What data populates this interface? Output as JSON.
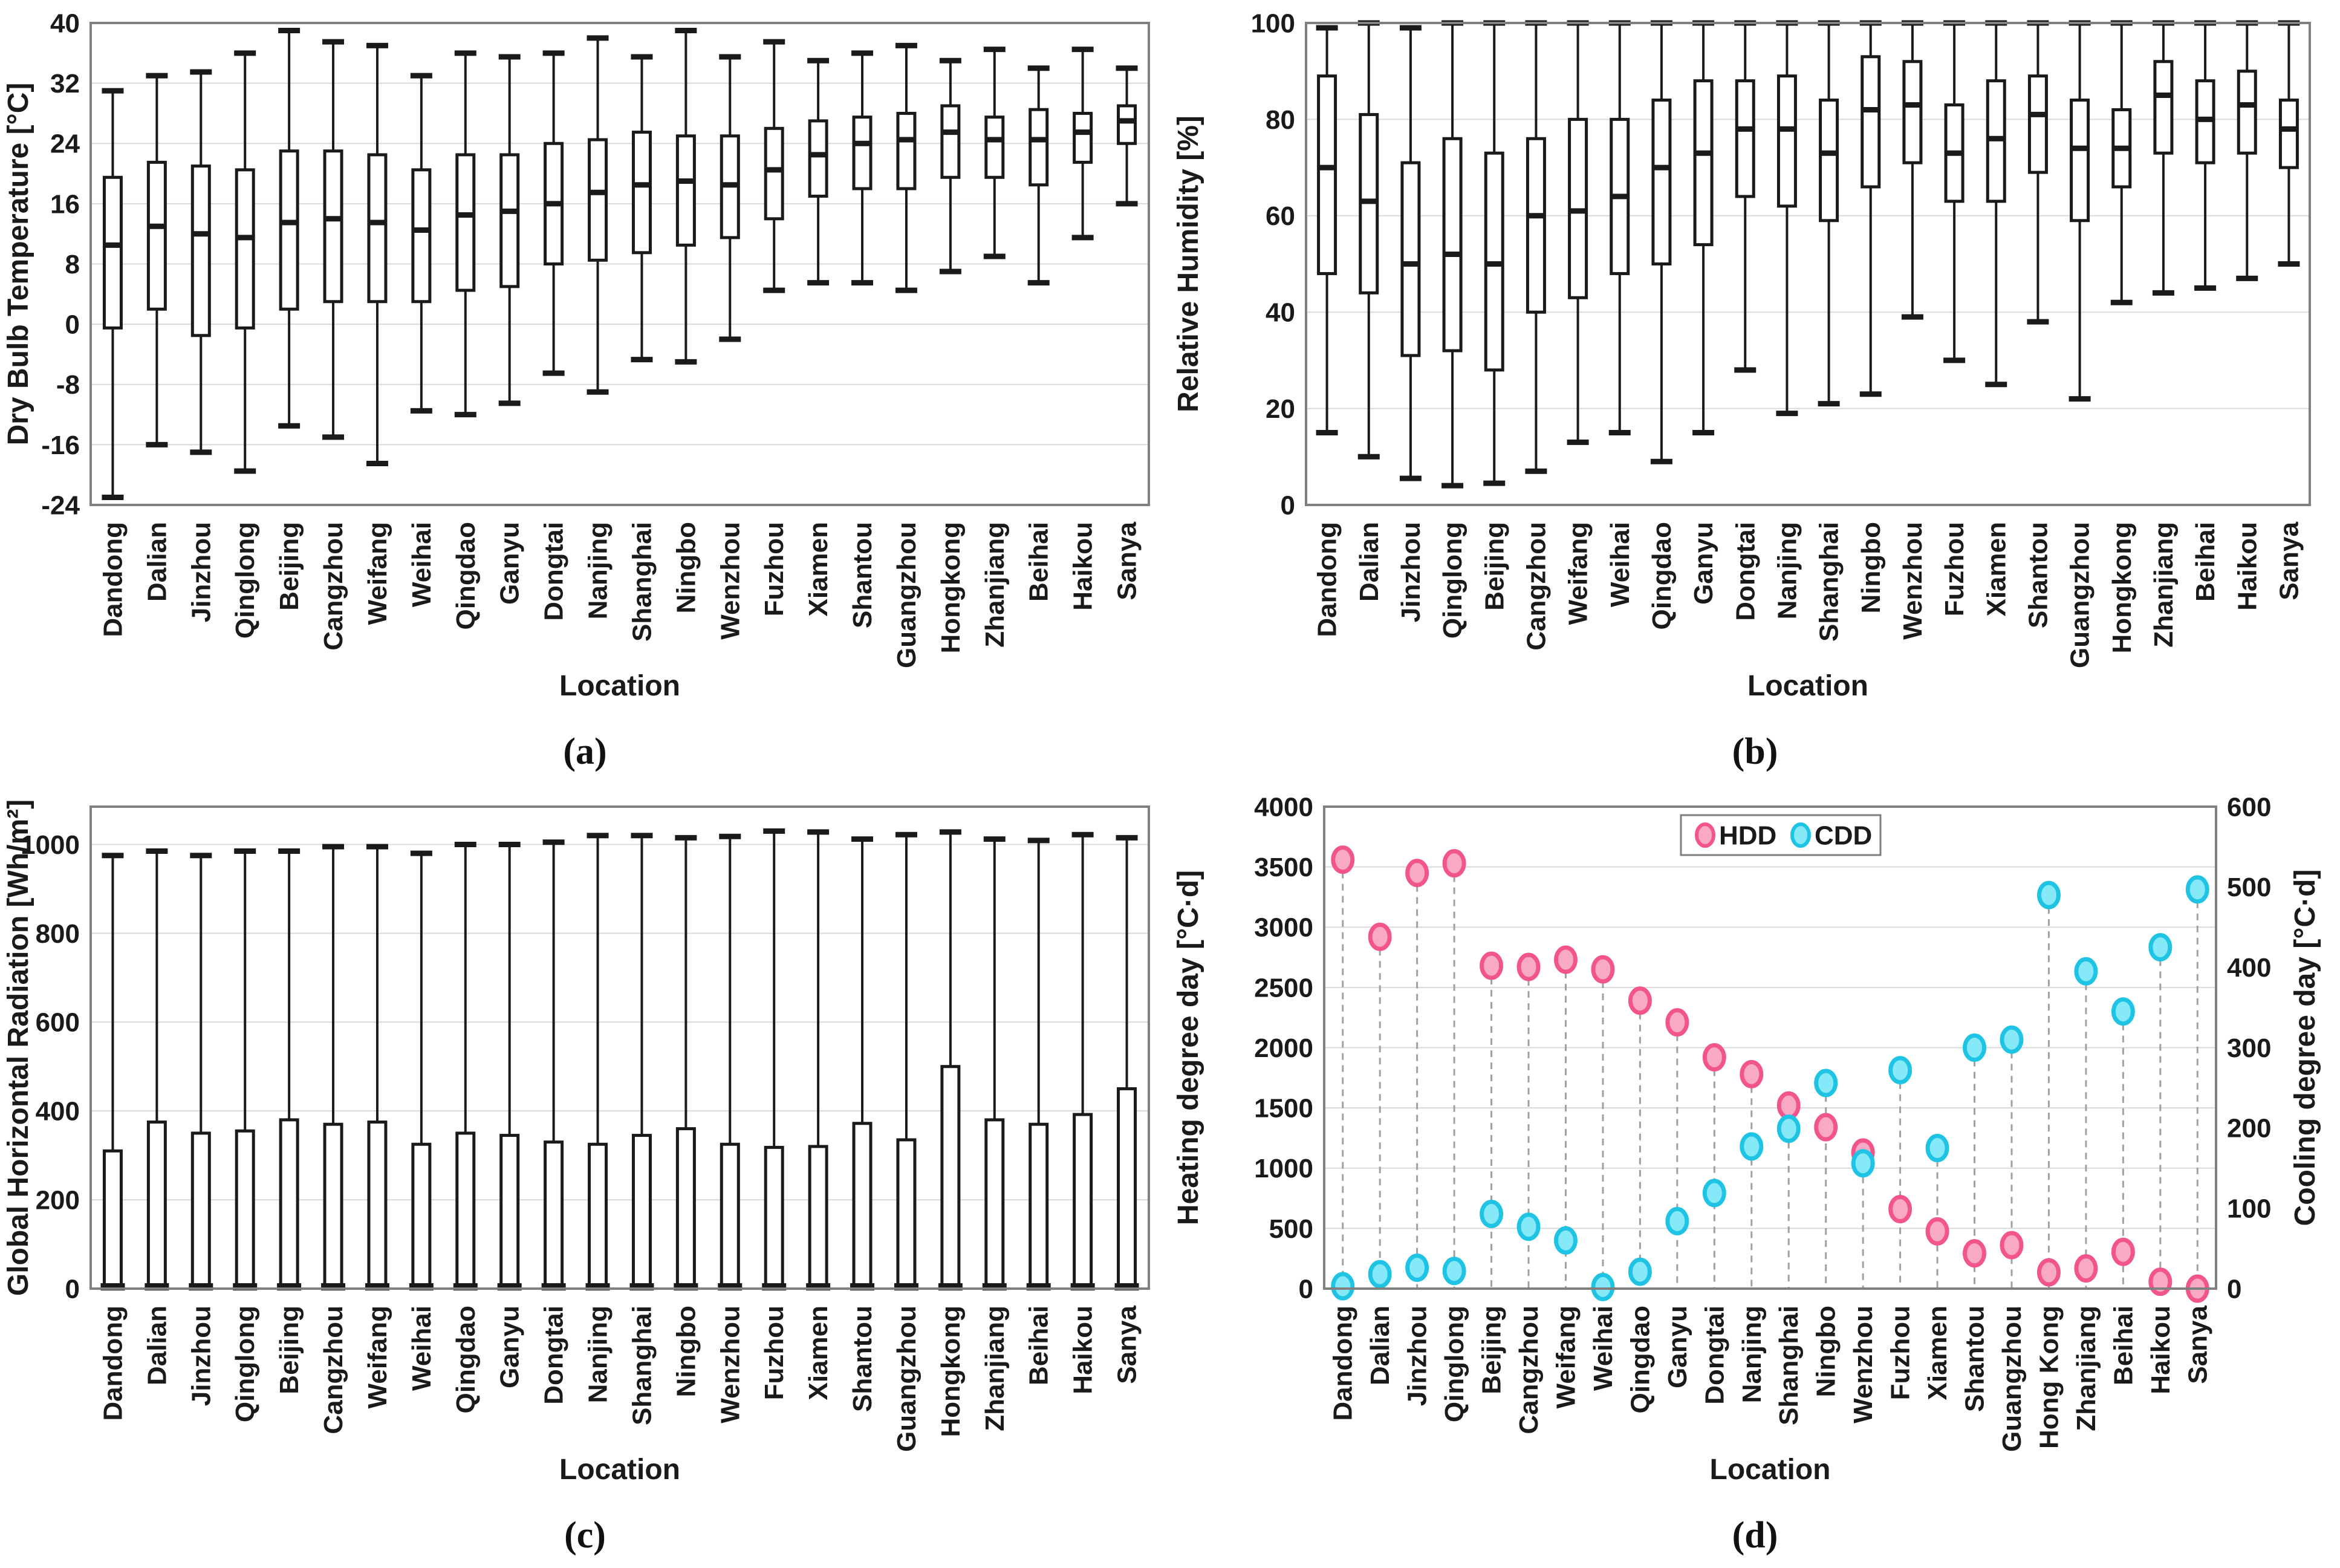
{
  "figure": {
    "background": "#ffffff"
  },
  "colors": {
    "axis": "#808080",
    "grid": "#d9d9d9",
    "box_stroke": "#1a1a1a",
    "box_fill": "#ffffff",
    "text": "#1a1a1a",
    "hdd_fill": "#f8a9c6",
    "hdd_stroke": "#f2558c",
    "cdd_fill": "#86e9f7",
    "cdd_stroke": "#1fc4e4",
    "dash_line": "#a0a0a0",
    "legend_border": "#7f7f7f",
    "legend_bg": "#ffffff"
  },
  "chart_data": [
    {
      "id": "a",
      "type": "box",
      "caption": "(a)",
      "xlabel": "Location",
      "ylabel": "Dry Bulb Temperature [°C]",
      "ylim": [
        -24,
        40
      ],
      "ytick_step": 8,
      "grid": true,
      "categories": [
        "Dandong",
        "Dalian",
        "Jinzhou",
        "Qinglong",
        "Beijing",
        "Cangzhou",
        "Weifang",
        "Weihai",
        "Qingdao",
        "Ganyu",
        "Dongtai",
        "Nanjing",
        "Shanghai",
        "Ningbo",
        "Wenzhou",
        "Fuzhou",
        "Xiamen",
        "Shantou",
        "Guangzhou",
        "Hongkong",
        "Zhanjiang",
        "Beihai",
        "Haikou",
        "Sanya"
      ],
      "boxes": [
        [
          -23,
          -0.5,
          10.5,
          19.5,
          31
        ],
        [
          -16,
          2,
          13,
          21.5,
          33
        ],
        [
          -17,
          -1.5,
          12,
          21,
          33.5
        ],
        [
          -19.5,
          -0.5,
          11.5,
          20.5,
          36
        ],
        [
          -13.5,
          2,
          13.5,
          23,
          39
        ],
        [
          -15,
          3,
          14,
          23,
          37.5
        ],
        [
          -18.5,
          3,
          13.5,
          22.5,
          37
        ],
        [
          -11.5,
          3,
          12.5,
          20.5,
          33
        ],
        [
          -12,
          4.5,
          14.5,
          22.5,
          36
        ],
        [
          -10.5,
          5,
          15,
          22.5,
          35.5
        ],
        [
          -6.5,
          8,
          16,
          24,
          36
        ],
        [
          -9,
          8.5,
          17.5,
          24.5,
          38
        ],
        [
          -4.7,
          9.5,
          18.5,
          25.5,
          35.5
        ],
        [
          -5,
          10.5,
          19,
          25,
          39
        ],
        [
          -2,
          11.5,
          18.5,
          25,
          35.5
        ],
        [
          4.5,
          14,
          20.5,
          26,
          37.5
        ],
        [
          5.5,
          17,
          22.5,
          27,
          35
        ],
        [
          5.5,
          18,
          24,
          27.5,
          36
        ],
        [
          4.5,
          18,
          24.5,
          28,
          37
        ],
        [
          7,
          19.5,
          25.5,
          29,
          35
        ],
        [
          9,
          19.5,
          24.5,
          27.5,
          36.5
        ],
        [
          5.5,
          18.5,
          24.5,
          28.5,
          34
        ],
        [
          11.5,
          21.5,
          25.5,
          28,
          36.5
        ],
        [
          16,
          24,
          27,
          29,
          34
        ]
      ]
    },
    {
      "id": "b",
      "type": "box",
      "caption": "(b)",
      "xlabel": "Location",
      "ylabel": "Relative Humidity [%]",
      "ylim": [
        0,
        100
      ],
      "ytick_step": 20,
      "grid": true,
      "categories": [
        "Dandong",
        "Dalian",
        "Jinzhou",
        "Qinglong",
        "Beijing",
        "Cangzhou",
        "Weifang",
        "Weihai",
        "Qingdao",
        "Ganyu",
        "Dongtai",
        "Nanjing",
        "Shanghai",
        "Ningbo",
        "Wenzhou",
        "Fuzhou",
        "Xiamen",
        "Shantou",
        "Guangzhou",
        "Hongkong",
        "Zhanjiang",
        "Beihai",
        "Haikou",
        "Sanya"
      ],
      "boxes": [
        [
          15,
          48,
          70,
          89,
          99
        ],
        [
          10,
          44,
          63,
          81,
          100
        ],
        [
          5.5,
          31,
          50,
          71,
          99
        ],
        [
          4,
          32,
          52,
          76,
          100
        ],
        [
          4.5,
          28,
          50,
          73,
          100
        ],
        [
          7,
          40,
          60,
          76,
          100
        ],
        [
          13,
          43,
          61,
          80,
          100
        ],
        [
          15,
          48,
          64,
          80,
          100
        ],
        [
          9,
          50,
          70,
          84,
          100
        ],
        [
          15,
          54,
          73,
          88,
          100
        ],
        [
          28,
          64,
          78,
          88,
          100
        ],
        [
          19,
          62,
          78,
          89,
          100
        ],
        [
          21,
          59,
          73,
          84,
          100
        ],
        [
          23,
          66,
          82,
          93,
          100
        ],
        [
          39,
          71,
          83,
          92,
          100
        ],
        [
          30,
          63,
          73,
          83,
          100
        ],
        [
          25,
          63,
          76,
          88,
          100
        ],
        [
          38,
          69,
          81,
          89,
          100
        ],
        [
          22,
          59,
          74,
          84,
          100
        ],
        [
          42,
          66,
          74,
          82,
          100
        ],
        [
          44,
          73,
          85,
          92,
          100
        ],
        [
          45,
          71,
          80,
          88,
          100
        ],
        [
          47,
          73,
          83,
          90,
          100
        ],
        [
          50,
          70,
          78,
          84,
          100
        ]
      ]
    },
    {
      "id": "c",
      "type": "bar-whisker",
      "caption": "(c)",
      "xlabel": "Location",
      "ylabel": "Global Horizontal Radiation [Wh/m²]",
      "ylim": [
        0,
        1000
      ],
      "ytick_step": 200,
      "frame_top": 1085,
      "grid": true,
      "categories": [
        "Dandong",
        "Dalian",
        "Jinzhou",
        "Qinglong",
        "Beijing",
        "Cangzhou",
        "Weifang",
        "Weihai",
        "Qingdao",
        "Ganyu",
        "Dongtai",
        "Nanjing",
        "Shanghai",
        "Ningbo",
        "Wenzhou",
        "Fuzhou",
        "Xiamen",
        "Shantou",
        "Guangzhou",
        "Hongkong",
        "Zhanjiang",
        "Beihai",
        "Haikou",
        "Sanya"
      ],
      "bars": [
        [
          310,
          975
        ],
        [
          375,
          985
        ],
        [
          350,
          975
        ],
        [
          355,
          985
        ],
        [
          380,
          985
        ],
        [
          370,
          995
        ],
        [
          375,
          995
        ],
        [
          325,
          980
        ],
        [
          350,
          1000
        ],
        [
          345,
          1000
        ],
        [
          330,
          1005
        ],
        [
          325,
          1020
        ],
        [
          345,
          1020
        ],
        [
          360,
          1015
        ],
        [
          325,
          1018
        ],
        [
          318,
          1030
        ],
        [
          320,
          1028
        ],
        [
          372,
          1012
        ],
        [
          335,
          1022
        ],
        [
          500,
          1028
        ],
        [
          380,
          1012
        ],
        [
          370,
          1009
        ],
        [
          392,
          1022
        ],
        [
          450,
          1015
        ]
      ]
    },
    {
      "id": "d",
      "type": "scatter",
      "caption": "(d)",
      "xlabel": "Location",
      "ylabel_left": "Heating degree day [°C·d]",
      "ylabel_right": "Cooling degree day [°C·d]",
      "ylim_left": [
        0,
        4000
      ],
      "ytick_step_left": 500,
      "ylim_right": [
        0,
        600
      ],
      "ytick_step_right": 100,
      "grid": true,
      "legend": [
        "HDD",
        "CDD"
      ],
      "categories": [
        "Dandong",
        "Dalian",
        "Jinzhou",
        "Qinglong",
        "Beijing",
        "Cangzhou",
        "Weifang",
        "Weihai",
        "Qingdao",
        "Ganyu",
        "Dongtai",
        "Nanjing",
        "Shanghai",
        "Ningbo",
        "Wenzhou",
        "Fuzhou",
        "Xiamen",
        "Shantou",
        "Guangzhou",
        "Hong Kong",
        "Zhanjiang",
        "Beihai",
        "Haikou",
        "Sanya"
      ],
      "series": [
        {
          "name": "HDD",
          "axis": "left",
          "values": [
            3560,
            2920,
            3450,
            3530,
            2680,
            2670,
            2730,
            2650,
            2390,
            2210,
            1920,
            1780,
            1520,
            1340,
            1130,
            660,
            475,
            293,
            361,
            135,
            168,
            305,
            57,
            0
          ]
        },
        {
          "name": "CDD",
          "axis": "right",
          "values": [
            3,
            18,
            26,
            22,
            93,
            77,
            60,
            2,
            21,
            84,
            119,
            177,
            199,
            256,
            156,
            272,
            175,
            300,
            310,
            490,
            395,
            345,
            425,
            497
          ]
        }
      ]
    }
  ]
}
